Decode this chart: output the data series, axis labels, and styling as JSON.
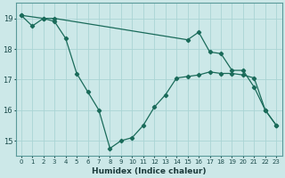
{
  "xlabel": "Humidex (Indice chaleur)",
  "background_color": "#cce8e8",
  "grid_color": "#aad4d4",
  "line_color": "#1a6b5a",
  "xlim": [
    -0.5,
    23.5
  ],
  "ylim": [
    14.5,
    19.5
  ],
  "yticks": [
    15,
    16,
    17,
    18,
    19
  ],
  "xticks": [
    0,
    1,
    2,
    3,
    4,
    5,
    6,
    7,
    8,
    9,
    10,
    11,
    12,
    13,
    14,
    15,
    16,
    17,
    18,
    19,
    20,
    21,
    22,
    23
  ],
  "series1_x": [
    0,
    1,
    2,
    3,
    4,
    5,
    6,
    7,
    8,
    9,
    10,
    11,
    12,
    13,
    14,
    15,
    16,
    17,
    18,
    19,
    20,
    21,
    22,
    23
  ],
  "series1_y": [
    19.1,
    18.75,
    19.0,
    18.9,
    18.35,
    17.2,
    16.6,
    16.0,
    14.75,
    15.0,
    15.1,
    15.5,
    16.1,
    16.5,
    17.05,
    17.1,
    17.15,
    17.25,
    17.2,
    17.2,
    17.15,
    17.05,
    16.0,
    15.5
  ],
  "series2_x": [
    0,
    2,
    3,
    15,
    16,
    17,
    18,
    19,
    20,
    21,
    22,
    23
  ],
  "series2_y": [
    19.1,
    19.0,
    19.0,
    18.3,
    18.55,
    17.9,
    17.85,
    17.3,
    17.3,
    16.75,
    16.0,
    15.5
  ]
}
